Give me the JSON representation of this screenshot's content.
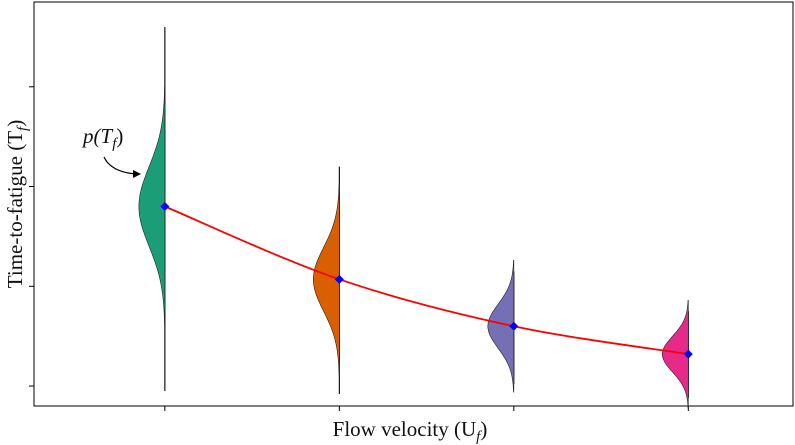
{
  "figure": {
    "xlabel": "Flow velocity (U",
    "xlabel_sub": "f",
    "xlabel_close": ")",
    "ylabel": "Time-to-fatigue (T",
    "ylabel_sub": "f",
    "ylabel_close": ")",
    "annotation": {
      "prefix": "p(T",
      "sub": "f",
      "suffix": ")"
    }
  },
  "chart_data": {
    "type": "line",
    "title": "",
    "xlabel": "Flow velocity (U_f)",
    "ylabel": "Time-to-fatigue (T_f)",
    "x_tick_labels": [],
    "y_tick_labels": [],
    "grid": false,
    "x": [
      1,
      2,
      3,
      4
    ],
    "xlim": [
      0.25,
      4.6
    ],
    "ylim": [
      0.2,
      4.25
    ],
    "series": [
      {
        "values": [
          2.2,
          1.47,
          1.0,
          0.72
        ]
      }
    ],
    "colors": {
      "curve": "#ff0000",
      "marker": "#0000ff",
      "distributions": [
        "#1b9e77",
        "#d95f02",
        "#7570b3",
        "#e7298a"
      ],
      "spine": "#000000"
    },
    "distributions": [
      {
        "center": 2.2,
        "spread": 0.4,
        "extent": [
          0.35,
          4.0
        ]
      },
      {
        "center": 1.47,
        "spread": 0.32,
        "extent": [
          0.32,
          2.6
        ]
      },
      {
        "center": 1.0,
        "spread": 0.22,
        "extent": [
          0.42,
          1.55
        ]
      },
      {
        "center": 0.72,
        "spread": 0.18,
        "extent": [
          0.28,
          1.15
        ]
      }
    ]
  }
}
